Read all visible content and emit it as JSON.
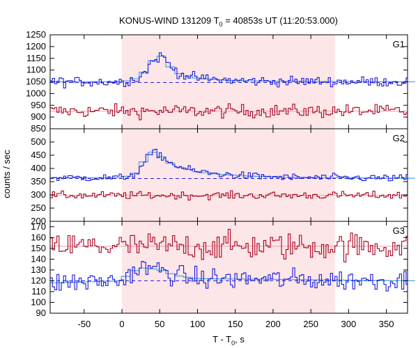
{
  "chart_data": {
    "type": "line",
    "title": "KONUS-WIND 131209 T",
    "title_sub": "0",
    "title_rest": " = 40853s UT (11:20:53.000)",
    "xlabel": "T - T",
    "xlabel_sub": "0",
    "xlabel_rest": ", s",
    "ylabel": "counts / sec",
    "xlim": [
      -95,
      378
    ],
    "x_ticks": [
      -50,
      0,
      50,
      100,
      150,
      200,
      250,
      300,
      350
    ],
    "x_tick_labels": [
      "-50",
      "0",
      "50",
      "100",
      "150",
      "200",
      "250",
      "300",
      "350"
    ],
    "shaded_interval": [
      0,
      282
    ],
    "colors": {
      "shade": "#fde6e8",
      "blue": "#1a1adc",
      "red": "#a8001e",
      "fit": "#4aa3df",
      "fit_red": "#e8a0a8",
      "background_line": "#1a1adc"
    },
    "panels": [
      {
        "label": "G1",
        "ylim": [
          850,
          1250
        ],
        "y_ticks": [
          850,
          900,
          950,
          1000,
          1050,
          1100,
          1150,
          1200,
          1250
        ],
        "y_tick_labels": [
          "850",
          "900",
          "950",
          "1000",
          "1050",
          "1100",
          "1150",
          "1200",
          "1250"
        ],
        "background_level": 1047,
        "blue_profile": [
          [
            -95,
            1050
          ],
          [
            0,
            1050
          ],
          [
            20,
            1065
          ],
          [
            30,
            1095
          ],
          [
            38,
            1135
          ],
          [
            45,
            1150
          ],
          [
            52,
            1160
          ],
          [
            58,
            1135
          ],
          [
            65,
            1110
          ],
          [
            75,
            1085
          ],
          [
            90,
            1070
          ],
          [
            110,
            1062
          ],
          [
            150,
            1055
          ],
          [
            200,
            1052
          ],
          [
            378,
            1050
          ]
        ],
        "blue_noise": 15,
        "red_profile": [
          [
            -95,
            925
          ],
          [
            378,
            925
          ]
        ],
        "red_noise": 20
      },
      {
        "label": "G2",
        "ylim": [
          200,
          550
        ],
        "y_ticks": [
          200,
          250,
          300,
          350,
          400,
          450,
          500
        ],
        "y_tick_labels": [
          "200",
          "250",
          "300",
          "350",
          "400",
          "450",
          "500"
        ],
        "background_level": 362,
        "blue_profile": [
          [
            -95,
            365
          ],
          [
            0,
            365
          ],
          [
            20,
            385
          ],
          [
            32,
            440
          ],
          [
            40,
            462
          ],
          [
            50,
            450
          ],
          [
            60,
            425
          ],
          [
            75,
            405
          ],
          [
            95,
            390
          ],
          [
            120,
            380
          ],
          [
            160,
            372
          ],
          [
            220,
            366
          ],
          [
            378,
            363
          ]
        ],
        "blue_noise": 10,
        "red_profile": [
          [
            -95,
            298
          ],
          [
            378,
            298
          ]
        ],
        "red_noise": 10
      },
      {
        "label": "G3",
        "ylim": [
          90,
          175
        ],
        "y_ticks": [
          90,
          100,
          110,
          120,
          130,
          140,
          150,
          160,
          170
        ],
        "y_tick_labels": [
          "90",
          "100",
          "110",
          "120",
          "130",
          "140",
          "150",
          "160",
          "170"
        ],
        "background_level": 120,
        "blue_profile": [
          [
            -95,
            118
          ],
          [
            0,
            120
          ],
          [
            10,
            128
          ],
          [
            30,
            132
          ],
          [
            50,
            130
          ],
          [
            70,
            125
          ],
          [
            100,
            122
          ],
          [
            378,
            120
          ]
        ],
        "blue_noise": 7,
        "red_profile": [
          [
            -95,
            152
          ],
          [
            378,
            152
          ]
        ],
        "red_noise": 9
      }
    ],
    "bin_width": 2.944
  }
}
